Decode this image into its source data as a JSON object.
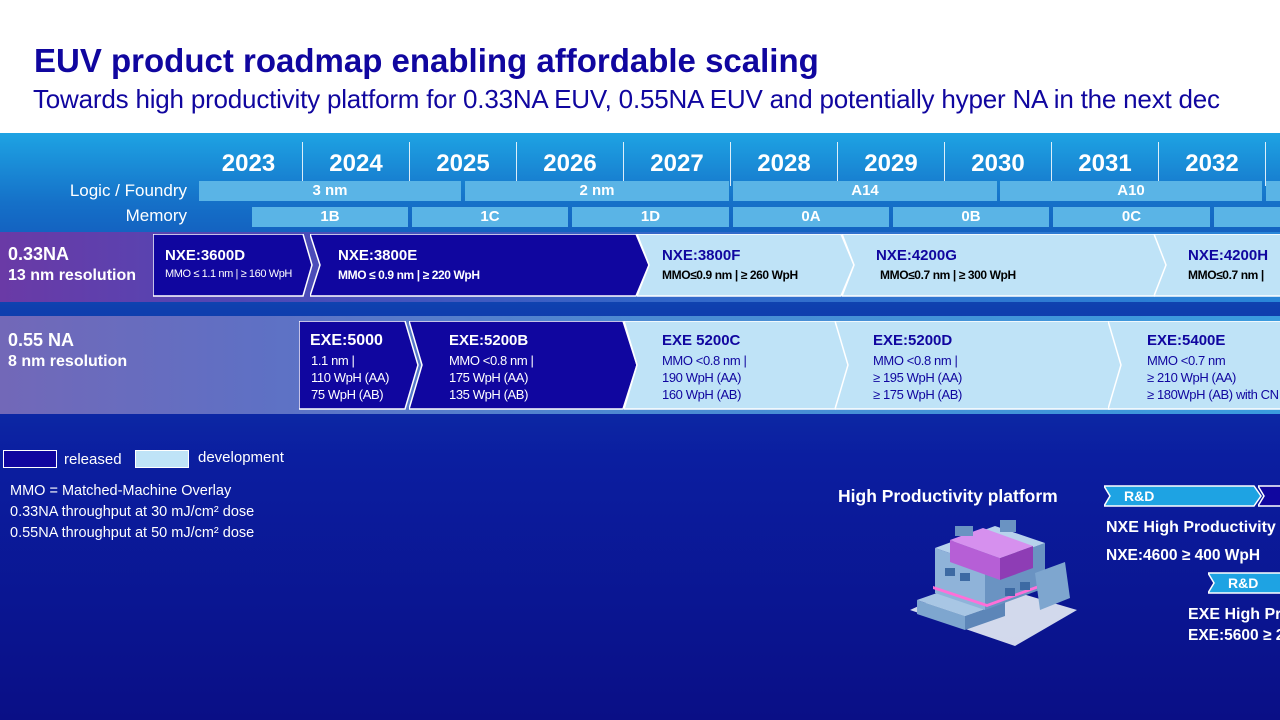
{
  "header": {
    "title": "EUV product roadmap enabling affordable scaling",
    "subtitle": "Towards high productivity platform for 0.33NA EUV, 0.55NA EUV and potentially hyper NA in the next dec"
  },
  "years": [
    "2023",
    "2024",
    "2025",
    "2026",
    "2027",
    "2028",
    "2029",
    "2030",
    "2031",
    "2032"
  ],
  "rows": {
    "logic_label": "Logic / Foundry",
    "memory_label": "Memory",
    "logic_nodes": [
      "3 nm",
      "2 nm",
      "A14",
      "A10"
    ],
    "memory_nodes": [
      "1B",
      "1C",
      "1D",
      "0A",
      "0B",
      "0C"
    ]
  },
  "na033": {
    "title": "0.33NA",
    "subtitle": "13 nm resolution",
    "products": [
      {
        "name": "NXE:3600D",
        "spec": "MMO ≤ 1.1 nm | ≥ 160 WpH",
        "status": "released"
      },
      {
        "name": "NXE:3800E",
        "spec": "MMO  ≤ 0.9 nm | ≥ 220 WpH",
        "status": "released"
      },
      {
        "name": "NXE:3800F",
        "spec": "MMO≤0.9 nm | ≥ 260 WpH",
        "status": "development"
      },
      {
        "name": "NXE:4200G",
        "spec": "MMO≤0.7 nm | ≥ 300 WpH",
        "status": "development"
      },
      {
        "name": "NXE:4200H",
        "spec": "MMO≤0.7 nm |",
        "status": "development"
      }
    ]
  },
  "na055": {
    "title": "0.55 NA",
    "subtitle": "8 nm resolution",
    "products": [
      {
        "name": "EXE:5000",
        "l1": "1.1 nm |",
        "l2": "110 WpH (AA)",
        "l3": "75 WpH (AB)",
        "status": "released"
      },
      {
        "name": "EXE:5200B",
        "l1": "MMO <0.8 nm |",
        "l2": "175 WpH (AA)",
        "l3": "135 WpH (AB)",
        "status": "released"
      },
      {
        "name": "EXE 5200C",
        "l1": "MMO <0.8 nm |",
        "l2": "190 WpH (AA)",
        "l3": "160 WpH (AB)",
        "status": "development"
      },
      {
        "name": "EXE:5200D",
        "l1": "MMO <0.8 nm |",
        "l2": "≥ 195 WpH (AA)",
        "l3": "≥ 175 WpH (AB)",
        "status": "development"
      },
      {
        "name": "EXE:5400E",
        "l1": "MMO <0.7 nm",
        "l2": "≥ 210 WpH (AA)",
        "l3": "≥ 180WpH (AB) with CN",
        "status": "development"
      }
    ]
  },
  "legend": {
    "released": "released",
    "development": "development",
    "released_color": "#10069f",
    "development_color": "#bfe3f7"
  },
  "notes": [
    "MMO = Matched-Machine Overlay",
    "0.33NA throughput at 30 mJ/cm² dose",
    "0.55NA throughput at 50 mJ/cm² dose"
  ],
  "high_productivity": {
    "title": "High Productivity platform",
    "rd_label": "R&D",
    "nxe_line1": "NXE High Productivity",
    "nxe_line2": "NXE:4600  ≥ 400 WpH",
    "exe_line1": "EXE  High Pr",
    "exe_line2": "EXE:5600 ≥ 2"
  },
  "colors": {
    "title": "#10069f",
    "released": "#10069f",
    "development": "#bfe3f7",
    "band": "#5ab4e6"
  }
}
